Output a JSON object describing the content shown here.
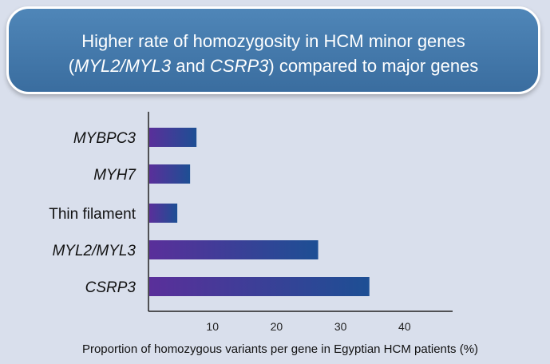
{
  "title": {
    "line1": "Higher rate of homozygosity in HCM minor genes",
    "line2_pre": "(",
    "line2_gene1": "MYL2/MYL3",
    "line2_mid": " and ",
    "line2_gene2": "CSRP3",
    "line2_post": ") compared to major genes"
  },
  "colors": {
    "title_box": "#4479ab",
    "bar_start": "#5a2f9a",
    "bar_end": "#1d4f94",
    "background": "#d9dfec"
  },
  "chart_data": {
    "type": "bar",
    "orientation": "horizontal",
    "categories": [
      "MYBPC3",
      "MYH7",
      "Thin filament",
      "MYL2/MYL3",
      "CSRP3"
    ],
    "italic": [
      true,
      true,
      false,
      true,
      true
    ],
    "values": [
      7.5,
      6.5,
      4.5,
      26.5,
      34.5
    ],
    "xlabel": "Proportion of homozygous variants per gene in Egyptian HCM patients (%)",
    "xticks": [
      10,
      20,
      30,
      40
    ],
    "xlim": [
      0,
      47.5
    ],
    "grid": false
  }
}
